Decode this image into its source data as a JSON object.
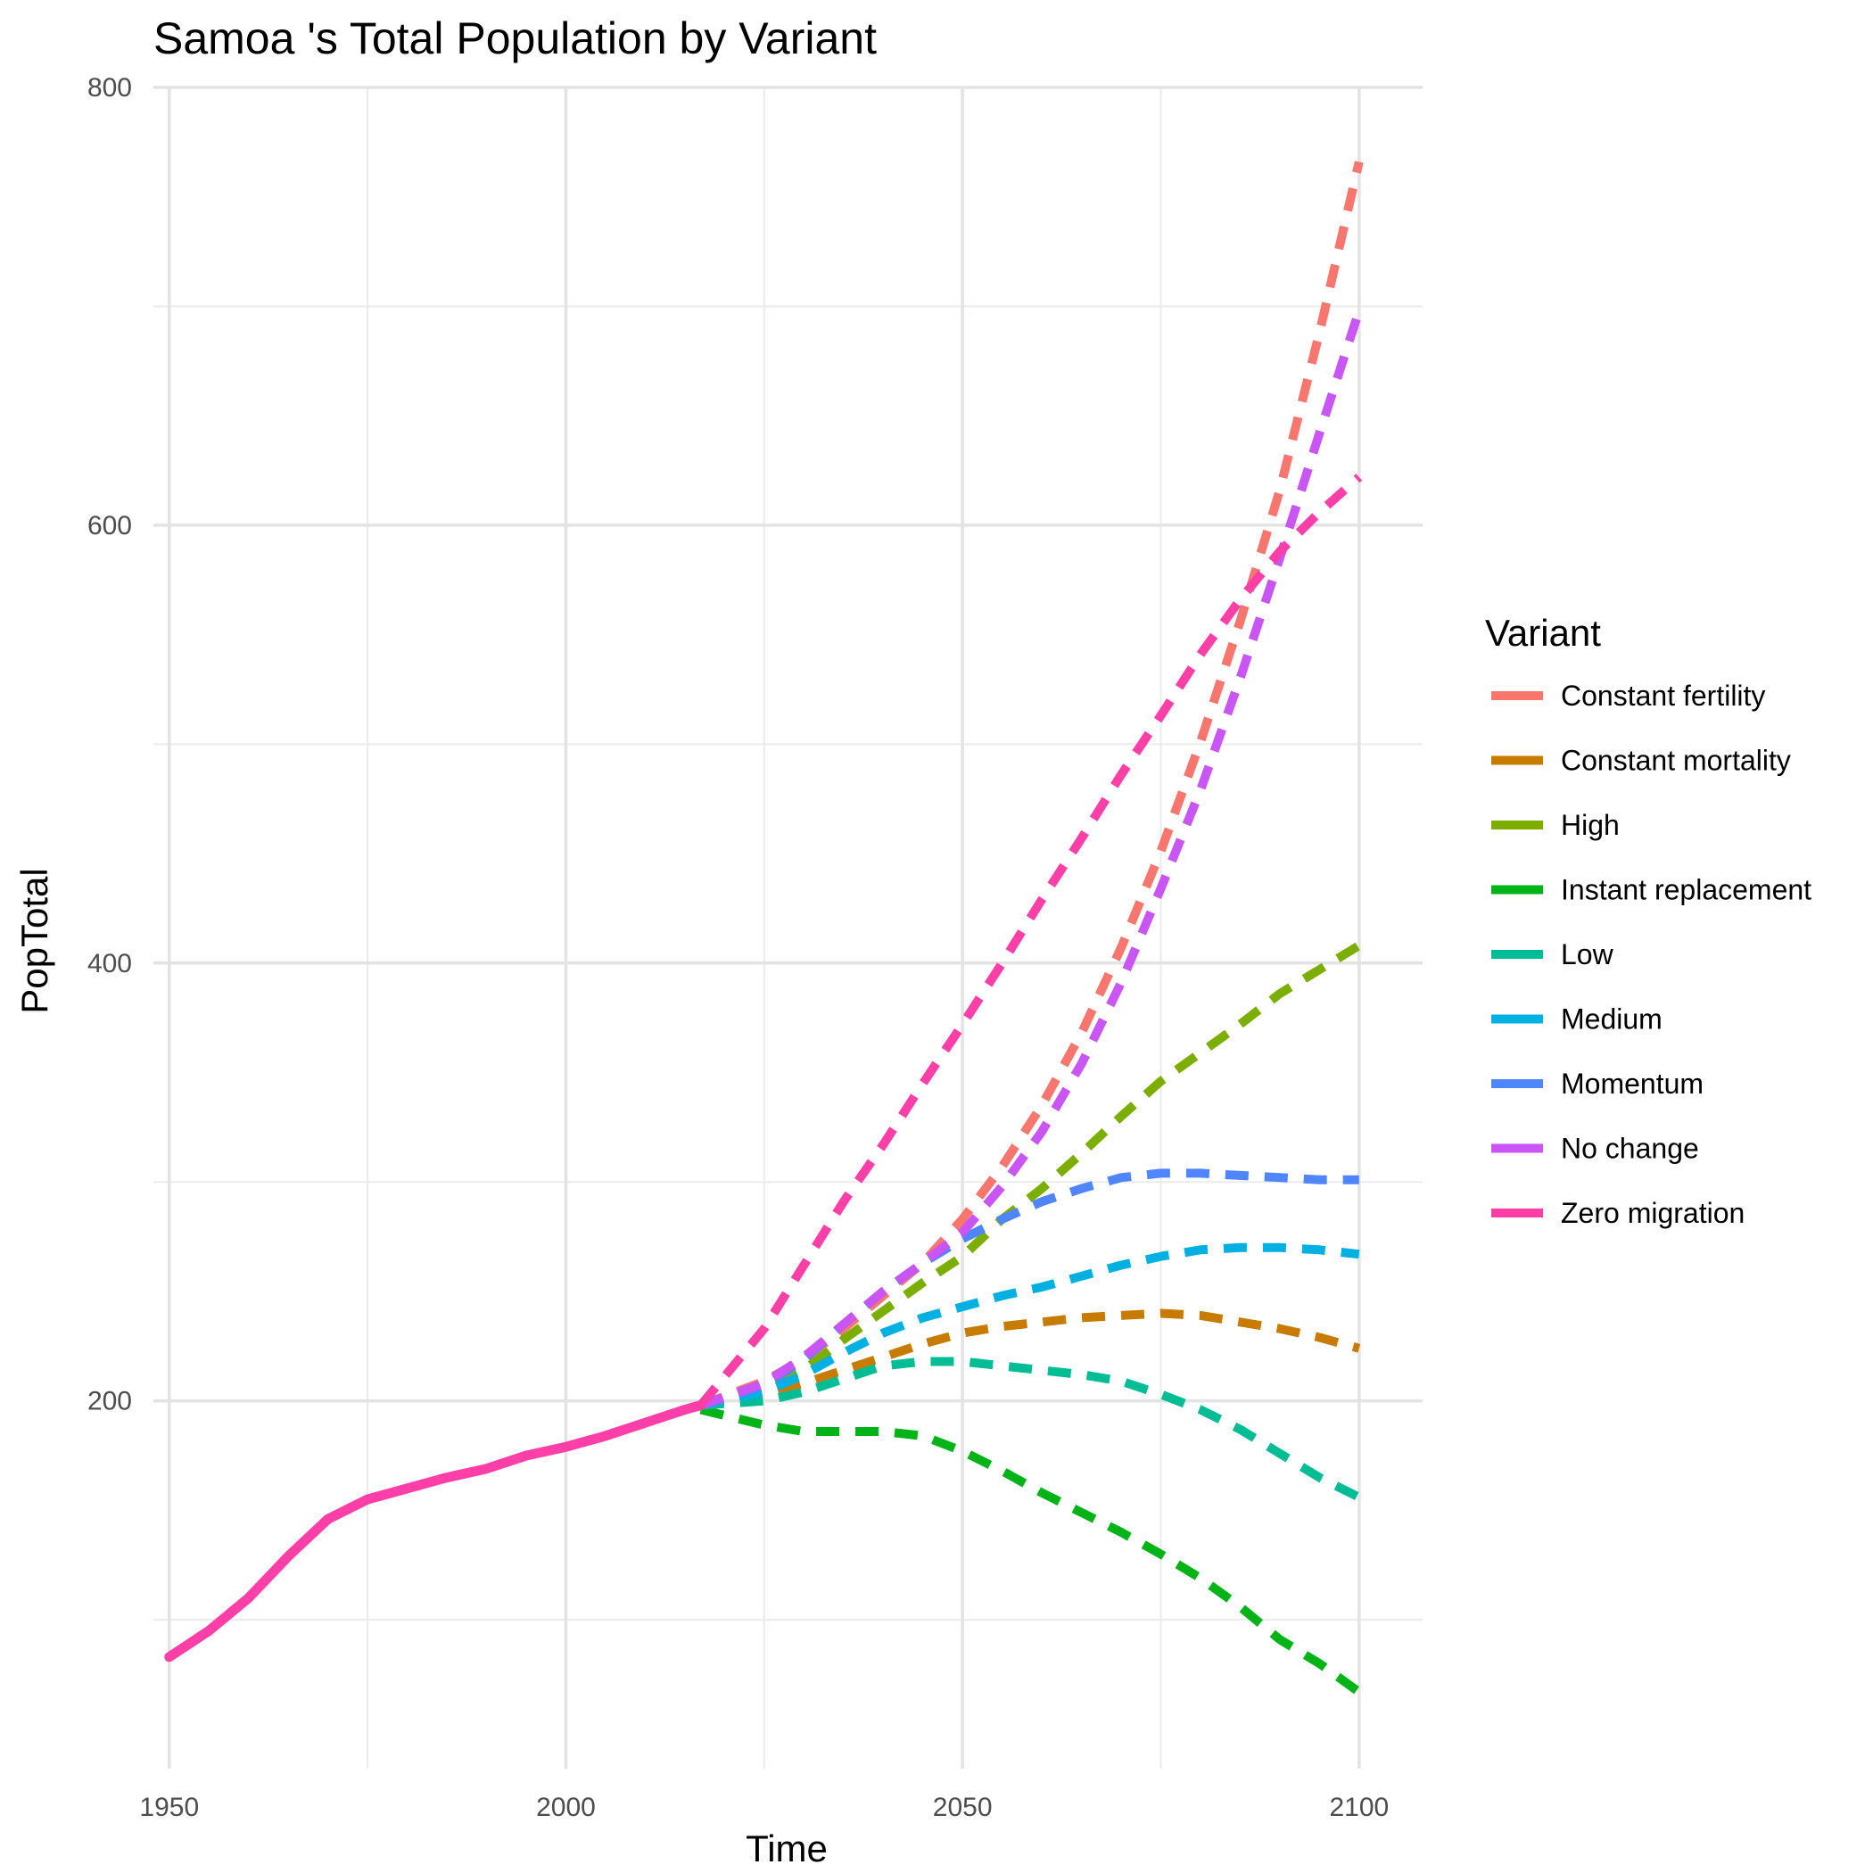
{
  "chart_data": {
    "type": "line",
    "title": "Samoa 's Total Population by Variant",
    "xlabel": "Time",
    "ylabel": "PopTotal",
    "xlim": [
      1948,
      2108
    ],
    "ylim": [
      32,
      800
    ],
    "x_ticks": [
      1950,
      2000,
      2050,
      2100
    ],
    "y_ticks": [
      200,
      400,
      600,
      800
    ],
    "grid": true,
    "legend": {
      "title": "Variant",
      "position": "right"
    },
    "history": {
      "name": "Zero migration",
      "color": "#FF3FA8",
      "x": [
        1950,
        1955,
        1960,
        1965,
        1970,
        1975,
        1980,
        1985,
        1990,
        1995,
        2000,
        2005,
        2010,
        2015,
        2017
      ],
      "y": [
        83,
        95,
        110,
        129,
        146,
        155,
        160,
        165,
        169,
        175,
        179,
        184,
        190,
        196,
        198
      ]
    },
    "series": [
      {
        "name": "Constant fertility",
        "color": "#F8766D",
        "x": [
          2017,
          2025,
          2030,
          2035,
          2040,
          2045,
          2050,
          2055,
          2060,
          2065,
          2070,
          2075,
          2080,
          2085,
          2090,
          2095,
          2100
        ],
        "y": [
          198,
          209,
          219,
          233,
          248,
          263,
          283,
          307,
          335,
          368,
          407,
          451,
          501,
          556,
          616,
          688,
          766
        ]
      },
      {
        "name": "Constant mortality",
        "color": "#C77C00",
        "x": [
          2017,
          2025,
          2030,
          2035,
          2040,
          2045,
          2050,
          2055,
          2060,
          2065,
          2070,
          2075,
          2080,
          2085,
          2090,
          2095,
          2100
        ],
        "y": [
          198,
          203,
          208,
          214,
          220,
          226,
          231,
          234,
          236,
          238,
          239,
          240,
          239,
          236,
          233,
          229,
          224
        ]
      },
      {
        "name": "High",
        "color": "#7CAE00",
        "x": [
          2017,
          2025,
          2030,
          2035,
          2040,
          2045,
          2050,
          2055,
          2060,
          2065,
          2070,
          2075,
          2080,
          2085,
          2090,
          2095,
          2100
        ],
        "y": [
          198,
          206,
          214,
          228,
          241,
          254,
          266,
          283,
          297,
          313,
          330,
          346,
          359,
          372,
          386,
          397,
          408
        ]
      },
      {
        "name": "Instant replacement",
        "color": "#00B418",
        "x": [
          2017,
          2025,
          2030,
          2035,
          2040,
          2045,
          2050,
          2055,
          2060,
          2065,
          2070,
          2075,
          2080,
          2085,
          2090,
          2095,
          2100
        ],
        "y": [
          196,
          189,
          186,
          186,
          186,
          184,
          177,
          168,
          158,
          149,
          140,
          130,
          119,
          106,
          91,
          80,
          67
        ]
      },
      {
        "name": "Low",
        "color": "#00BD95",
        "x": [
          2017,
          2025,
          2030,
          2035,
          2040,
          2045,
          2050,
          2055,
          2060,
          2065,
          2070,
          2075,
          2080,
          2085,
          2090,
          2095,
          2100
        ],
        "y": [
          198,
          200,
          204,
          210,
          216,
          218,
          218,
          216,
          214,
          212,
          209,
          203,
          196,
          187,
          176,
          165,
          156
        ]
      },
      {
        "name": "Medium",
        "color": "#00B0E0",
        "x": [
          2017,
          2025,
          2030,
          2035,
          2040,
          2045,
          2050,
          2055,
          2060,
          2065,
          2070,
          2075,
          2080,
          2085,
          2090,
          2095,
          2100
        ],
        "y": [
          198,
          204,
          212,
          222,
          231,
          238,
          243,
          248,
          252,
          257,
          262,
          266,
          269,
          270,
          270,
          269,
          267
        ]
      },
      {
        "name": "Momentum",
        "color": "#4F86FF",
        "x": [
          2017,
          2025,
          2030,
          2035,
          2040,
          2045,
          2050,
          2055,
          2060,
          2065,
          2070,
          2075,
          2080,
          2085,
          2090,
          2095,
          2100
        ],
        "y": [
          198,
          207,
          219,
          235,
          250,
          263,
          274,
          283,
          291,
          297,
          302,
          304,
          304,
          303,
          302,
          301,
          301
        ]
      },
      {
        "name": "No change",
        "color": "#C855F4",
        "x": [
          2017,
          2025,
          2030,
          2035,
          2040,
          2045,
          2050,
          2055,
          2060,
          2065,
          2070,
          2075,
          2080,
          2085,
          2090,
          2095,
          2100
        ],
        "y": [
          198,
          208,
          220,
          235,
          250,
          263,
          277,
          298,
          323,
          354,
          391,
          434,
          479,
          530,
          585,
          642,
          698
        ]
      },
      {
        "name": "Zero migration",
        "color": "#FF3FA8",
        "x": [
          2017,
          2025,
          2030,
          2035,
          2040,
          2045,
          2050,
          2055,
          2060,
          2065,
          2070,
          2075,
          2080,
          2085,
          2090,
          2095,
          2100
        ],
        "y": [
          198,
          233,
          262,
          291,
          317,
          345,
          372,
          400,
          429,
          457,
          486,
          513,
          541,
          566,
          588,
          606,
          622
        ]
      }
    ]
  }
}
